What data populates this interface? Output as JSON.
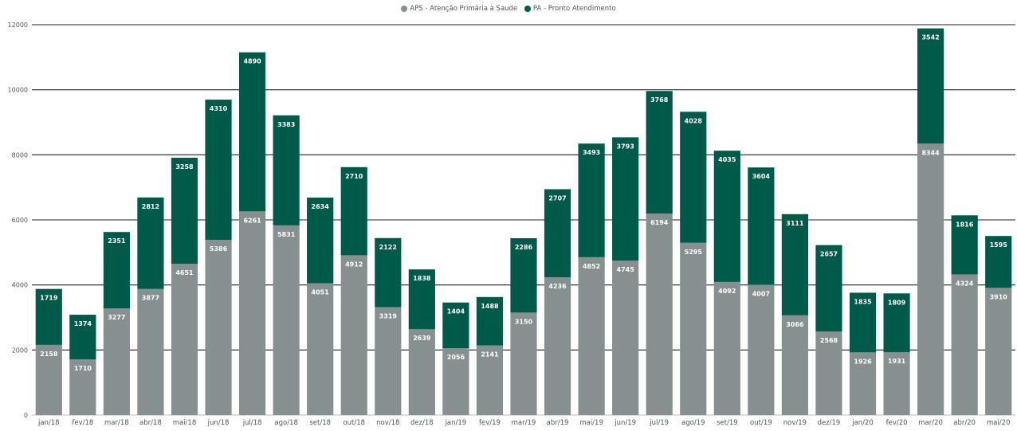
{
  "chart_data": {
    "type": "bar",
    "stacked": true,
    "categories": [
      "jan/18",
      "fev/18",
      "mar/18",
      "abr/18",
      "mai/18",
      "jun/18",
      "jul/18",
      "ago/18",
      "set/18",
      "out/18",
      "nov/18",
      "dez/18",
      "jan/19",
      "fev/19",
      "mar/19",
      "abr/19",
      "mai/19",
      "jun/19",
      "jul/19",
      "ago/19",
      "set/19",
      "out/19",
      "nov/19",
      "dez/19",
      "jan/20",
      "fev/20",
      "mar/20",
      "abr/20",
      "mai/20"
    ],
    "series": [
      {
        "name": "APS - Atenção Primária à Saude",
        "color": "#879090",
        "values": [
          2158,
          1710,
          3277,
          3877,
          4651,
          5386,
          6261,
          5831,
          4051,
          4912,
          3319,
          2639,
          2056,
          2141,
          3150,
          4236,
          4852,
          4745,
          6194,
          5295,
          4092,
          4007,
          3066,
          2568,
          1926,
          1931,
          8344,
          4324,
          3910
        ]
      },
      {
        "name": "PA - Pronto Atendimento",
        "color": "#005a4a",
        "values": [
          1719,
          1374,
          2351,
          2812,
          3258,
          4310,
          4890,
          3383,
          2634,
          2710,
          2122,
          1838,
          1404,
          1488,
          2286,
          2707,
          3493,
          3793,
          3768,
          4028,
          4035,
          3604,
          3111,
          2657,
          1835,
          1809,
          3542,
          1816,
          1595
        ]
      }
    ],
    "title": "",
    "xlabel": "",
    "ylabel": "",
    "ylim": [
      0,
      12000
    ],
    "yticks": [
      0,
      2000,
      4000,
      6000,
      8000,
      10000,
      12000
    ],
    "grid": true,
    "legend_position": "top-center"
  }
}
